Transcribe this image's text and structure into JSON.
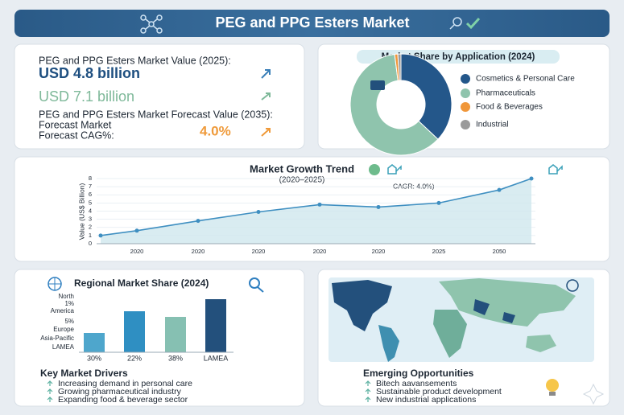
{
  "header": {
    "title": "PEG and PPG Esters Market"
  },
  "value_panel": {
    "label_2025": "PEG and PPG Esters Market Value (2025):",
    "value_2025": "USD 4.8 billion",
    "value_2035": "USD 7.1 billion",
    "label_2035": "PEG and PPG Esters Market Forecast Value (2035):",
    "forecast_line": "Forecast Market",
    "cagr_label": "Forecast CAG%:",
    "cagr_value": "4.0%"
  },
  "chart_data": [
    {
      "type": "donut",
      "title": "Market Share by Application (2024)",
      "categories": [
        "Cosmetics & Personal Care",
        "Pharmaceuticals",
        "Food & Beverages",
        "Industrial"
      ],
      "values": [
        37,
        61,
        1,
        1
      ],
      "colors": [
        "#24578a",
        "#8fc4ad",
        "#f0973a",
        "#9a9a9a"
      ]
    },
    {
      "type": "line",
      "title": "Market Growth Trend",
      "subtitle": "(2020–2025)",
      "annotation": "CAGR: 4.0%)",
      "y_label": "Value (US$ Billion)",
      "categories": [
        null,
        "2020",
        "2020",
        "2020",
        "2020",
        "2020",
        "2025",
        "2050",
        null
      ],
      "values": [
        1.0,
        1.6,
        2.8,
        3.9,
        4.8,
        4.5,
        5.0,
        6.6,
        8.0
      ],
      "color": "#3f8fc1",
      "ylim": [
        0,
        8
      ],
      "yticks": [
        0,
        1,
        2,
        3,
        4,
        5,
        6,
        7,
        8
      ]
    },
    {
      "type": "bar",
      "title": "Regional Market Share (2024)",
      "side_labels": [
        "North",
        "1%",
        "America",
        "5%",
        "Europe",
        "Asia-Pacific",
        "LAMEA"
      ],
      "categories": [
        "30%",
        "22%",
        "38%",
        "LAMEA"
      ],
      "values": [
        24,
        51,
        44,
        66
      ],
      "colors": [
        "#4ea6cc",
        "#2f8fc2",
        "#86c0b2",
        "#23507c"
      ]
    }
  ],
  "drivers": {
    "title": "Key Market Drivers",
    "items": [
      "Increasing demand in personal care",
      "Growing pharmaceutical industry",
      "Expanding food & beverage sector"
    ]
  },
  "opportunities": {
    "title": "Emerging Opportunities",
    "items": [
      "Bitech aavansements",
      "Sustainable product development",
      "New industrial applications"
    ]
  }
}
